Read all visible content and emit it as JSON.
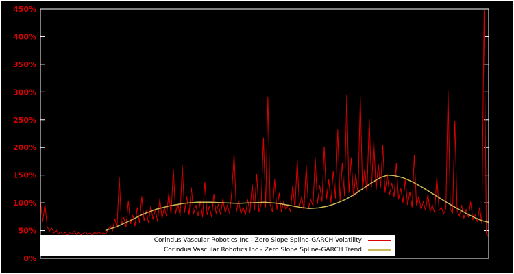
{
  "window": {
    "background": "#000000"
  },
  "chart_data": {
    "type": "line",
    "title": "",
    "xlabel": "",
    "ylabel": "",
    "ylim": [
      0,
      450
    ],
    "ytick_step": 50,
    "yticks": [
      "0%",
      "50%",
      "100%",
      "150%",
      "200%",
      "250%",
      "300%",
      "350%",
      "400%",
      "450%"
    ],
    "xticks": [],
    "grid": false,
    "frame_color": "#ffffff",
    "tick_label_color": "#dd0000",
    "legend_position": "bottom-center",
    "legend_background": "#ffffff",
    "series": [
      {
        "name": "Corindus Vascular Robotics Inc - Zero Slope Spline-GARCH Volatility",
        "color": "#dd0000",
        "x_mode": "index",
        "values": [
          103,
          66,
          98,
          57,
          49,
          54,
          46,
          51,
          44,
          48,
          43,
          47,
          42,
          46,
          44,
          49,
          43,
          47,
          42,
          45,
          48,
          43,
          46,
          42,
          47,
          44,
          48,
          43,
          46,
          44,
          52,
          58,
          50,
          72,
          54,
          146,
          60,
          74,
          56,
          104,
          62,
          78,
          58,
          92,
          64,
          112,
          68,
          86,
          63,
          95,
          70,
          88,
          66,
          108,
          72,
          92,
          75,
          118,
          78,
          162,
          80,
          100,
          76,
          168,
          82,
          112,
          78,
          128,
          80,
          96,
          76,
          104,
          74,
          138,
          78,
          94,
          74,
          116,
          80,
          98,
          78,
          108,
          82,
          96,
          80,
          122,
          188,
          84,
          104,
          80,
          92,
          78,
          106,
          82,
          134,
          86,
          152,
          84,
          98,
          218,
          92,
          292,
          96,
          84,
          142,
          88,
          118,
          84,
          102,
          88,
          96,
          84,
          132,
          88,
          178,
          92,
          112,
          86,
          168,
          90,
          106,
          94,
          182,
          98,
          132,
          102,
          202,
          106,
          142,
          100,
          158,
          108,
          232,
          104,
          172,
          112,
          296,
          118,
          182,
          110,
          152,
          114,
          292,
          122,
          162,
          118,
          252,
          128,
          212,
          122,
          170,
          128,
          204,
          118,
          152,
          114,
          136,
          110,
          172,
          106,
          126,
          100,
          142,
          96,
          120,
          92,
          186,
          94,
          112,
          88,
          102,
          86,
          116,
          84,
          96,
          82,
          148,
          86,
          92,
          80,
          90,
          302,
          88,
          82,
          248,
          86,
          76,
          96,
          72,
          88,
          74,
          102,
          70,
          78,
          66,
          92,
          62,
          448,
          44,
          40
        ]
      },
      {
        "name": "Corindus Vascular Robotics Inc - Zero Slope Spline-GARCH Trend",
        "color": "#c9b957",
        "x_mode": "fraction_points",
        "points": [
          [
            0.145,
            50
          ],
          [
            0.17,
            57
          ],
          [
            0.2,
            68
          ],
          [
            0.23,
            80
          ],
          [
            0.26,
            89
          ],
          [
            0.29,
            95
          ],
          [
            0.32,
            99
          ],
          [
            0.35,
            101
          ],
          [
            0.38,
            101
          ],
          [
            0.41,
            100
          ],
          [
            0.44,
            99
          ],
          [
            0.47,
            100
          ],
          [
            0.5,
            101
          ],
          [
            0.53,
            99
          ],
          [
            0.56,
            95
          ],
          [
            0.58,
            92
          ],
          [
            0.6,
            90
          ],
          [
            0.62,
            91
          ],
          [
            0.64,
            94
          ],
          [
            0.66,
            99
          ],
          [
            0.68,
            106
          ],
          [
            0.7,
            115
          ],
          [
            0.72,
            126
          ],
          [
            0.74,
            137
          ],
          [
            0.76,
            146
          ],
          [
            0.775,
            150
          ],
          [
            0.79,
            149
          ],
          [
            0.81,
            145
          ],
          [
            0.83,
            138
          ],
          [
            0.85,
            129
          ],
          [
            0.87,
            119
          ],
          [
            0.89,
            109
          ],
          [
            0.91,
            99
          ],
          [
            0.93,
            90
          ],
          [
            0.95,
            81
          ],
          [
            0.97,
            73
          ],
          [
            0.985,
            68
          ],
          [
            1.0,
            65
          ]
        ]
      }
    ]
  }
}
